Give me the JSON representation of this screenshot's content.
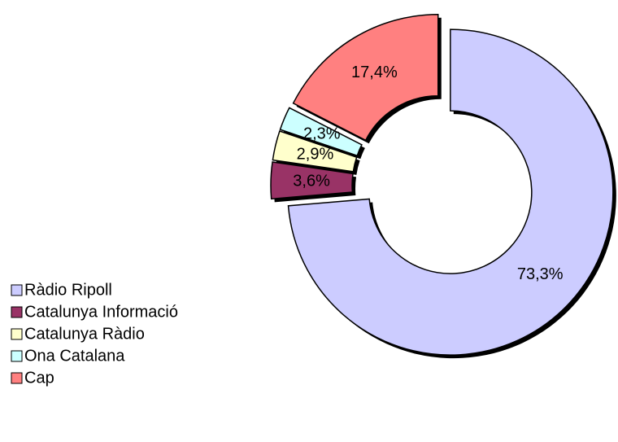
{
  "chart_data": {
    "type": "donut",
    "categories": [
      "Ràdio Ripoll",
      "Catalunya Informació",
      "Catalunya  Ràdio",
      "Ona Catalana",
      "Cap"
    ],
    "values": [
      73.3,
      3.6,
      2.9,
      2.3,
      17.4
    ],
    "value_labels": [
      "73,3%",
      "3,6%",
      "2,9%",
      "2,3%",
      "17,4%"
    ],
    "colors": [
      "#ccccff",
      "#993366",
      "#ffffcc",
      "#ccffff",
      "#ff8080"
    ],
    "legend": "left"
  }
}
